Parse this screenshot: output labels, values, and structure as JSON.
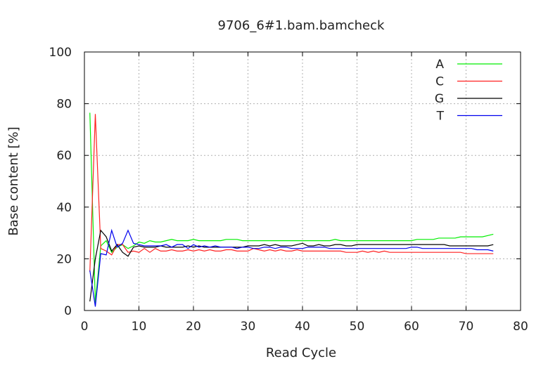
{
  "chart_data": {
    "type": "line",
    "title": "9706_6#1.bam.bamcheck",
    "xlabel": "Read Cycle",
    "ylabel": "Base content [%]",
    "xlim": [
      0,
      80
    ],
    "ylim": [
      0,
      100
    ],
    "xticks": [
      0,
      10,
      20,
      30,
      40,
      50,
      60,
      70,
      80
    ],
    "yticks": [
      0,
      20,
      40,
      60,
      80,
      100
    ],
    "grid": true,
    "legend_position": "top-right",
    "x": [
      1,
      2,
      3,
      4,
      5,
      6,
      7,
      8,
      9,
      10,
      11,
      12,
      13,
      14,
      15,
      16,
      17,
      18,
      19,
      20,
      21,
      22,
      23,
      24,
      25,
      26,
      27,
      28,
      29,
      30,
      31,
      32,
      33,
      34,
      35,
      36,
      37,
      38,
      39,
      40,
      41,
      42,
      43,
      44,
      45,
      46,
      47,
      48,
      49,
      50,
      51,
      52,
      53,
      54,
      55,
      56,
      57,
      58,
      59,
      60,
      61,
      62,
      63,
      64,
      65,
      66,
      67,
      68,
      69,
      70,
      71,
      72,
      73,
      74,
      75
    ],
    "series": [
      {
        "name": "A",
        "color": "#00ee00",
        "values": [
          76.5,
          3,
          25,
          27,
          22.5,
          24.5,
          25.5,
          24,
          25,
          26.5,
          26,
          27,
          26.5,
          26.5,
          27,
          27.5,
          27,
          27,
          27,
          27.5,
          27,
          27,
          27,
          27,
          27,
          27.5,
          27.5,
          27.5,
          27,
          27,
          27,
          27,
          27,
          27,
          27,
          27,
          27,
          27,
          27,
          27,
          27,
          27,
          27,
          27,
          27,
          27.5,
          27,
          27,
          27,
          27,
          27,
          27,
          27,
          27,
          27,
          27,
          27,
          27,
          27,
          27,
          27.5,
          27.5,
          27.5,
          27.5,
          28,
          28,
          28,
          28,
          28.5,
          28.5,
          28.5,
          28.5,
          28.5,
          29,
          29.5
        ]
      },
      {
        "name": "C",
        "color": "#ff2020",
        "values": [
          15,
          76,
          24,
          23,
          21.5,
          25.5,
          25.5,
          22.5,
          23,
          22.5,
          24,
          22.5,
          24,
          23,
          23,
          23.5,
          23,
          23,
          23.5,
          23,
          23.5,
          23,
          23.5,
          23,
          23,
          23.5,
          23.5,
          23,
          23,
          23,
          24,
          23.5,
          23,
          23.5,
          23,
          23.5,
          23,
          23,
          23.5,
          23,
          23,
          23,
          23,
          23,
          23,
          23,
          23,
          22.5,
          22.5,
          22.5,
          23,
          22.5,
          23,
          22.5,
          23,
          22.5,
          22.5,
          22.5,
          22.5,
          22.5,
          22.5,
          22.5,
          22.5,
          22.5,
          22.5,
          22.5,
          22.5,
          22.5,
          22.5,
          22,
          22,
          22,
          22,
          22,
          22
        ]
      },
      {
        "name": "G",
        "color": "#000000",
        "values": [
          3.5,
          20,
          31,
          28.5,
          23,
          25.5,
          22.5,
          21,
          24.5,
          25,
          24.5,
          24.5,
          24.5,
          25,
          24.5,
          24.5,
          24.5,
          24.5,
          25,
          24.5,
          25,
          24.5,
          24.5,
          24.5,
          24.5,
          24.5,
          24.5,
          24.5,
          24.5,
          25,
          25,
          25,
          25.5,
          25,
          25.5,
          25,
          25,
          25,
          25.5,
          26,
          25,
          25,
          25.5,
          25,
          25,
          25.5,
          25.5,
          25,
          25,
          25.5,
          25.5,
          25.5,
          25.5,
          25.5,
          25.5,
          25.5,
          25.5,
          25.5,
          25.5,
          25.5,
          25.5,
          25.5,
          25.5,
          25.5,
          25.5,
          25.5,
          25,
          25,
          25,
          25,
          25,
          25,
          25,
          25,
          25.5
        ]
      },
      {
        "name": "T",
        "color": "#0000ee",
        "values": [
          15.5,
          1.5,
          22,
          21.5,
          31,
          24.5,
          26,
          31,
          26,
          25.5,
          25,
          25,
          25,
          25,
          25.5,
          24.5,
          25.5,
          25.5,
          24,
          25.5,
          24.5,
          25,
          24.5,
          25,
          24.5,
          24.5,
          24.5,
          24,
          24.5,
          24.5,
          24,
          24,
          24.5,
          24.5,
          24,
          24.5,
          24.5,
          24,
          24,
          24,
          24.5,
          24.5,
          24.5,
          24.5,
          24,
          24,
          24,
          24,
          24,
          24,
          24,
          24,
          24,
          24,
          24,
          24,
          24,
          24,
          24,
          24.5,
          24.5,
          24,
          24,
          24,
          24,
          24,
          24,
          24,
          24,
          24,
          24,
          23.5,
          23.5,
          23.5,
          23
        ]
      }
    ]
  }
}
